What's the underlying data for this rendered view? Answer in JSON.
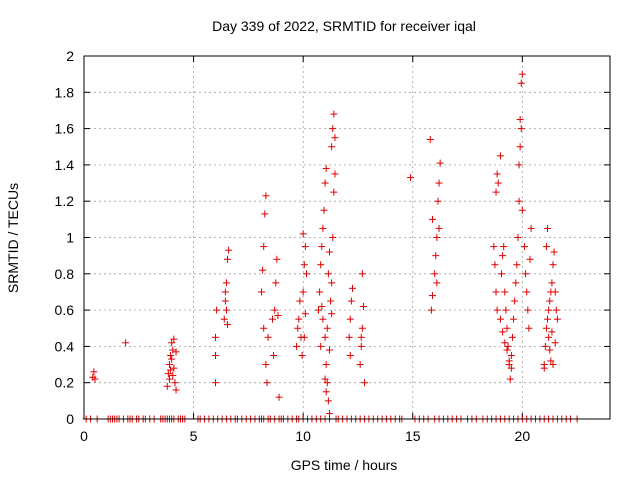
{
  "chart_data": {
    "type": "scatter",
    "title": "Day 339 of 2022, SRMTID for receiver iqal",
    "xlabel": "GPS time / hours",
    "ylabel": "SRMTID / TECUs",
    "xlim": [
      0,
      24
    ],
    "ylim": [
      0,
      2
    ],
    "xticks": [
      0,
      5,
      10,
      15,
      20
    ],
    "xtick_labels": [
      "0",
      "5",
      "10",
      "15",
      "20"
    ],
    "yticks": [
      0,
      0.2,
      0.4,
      0.6,
      0.8,
      1,
      1.2,
      1.4,
      1.6,
      1.8,
      2
    ],
    "ytick_labels": [
      "0",
      "0.2",
      "0.4",
      "0.6",
      "0.8",
      "1",
      "1.2",
      "1.4",
      "1.6",
      "1.8",
      "2"
    ],
    "grid": true,
    "marker": "+",
    "color": "#e00000",
    "series": [
      {
        "name": "SRMTID",
        "points": [
          [
            0.4,
            0.23
          ],
          [
            0.45,
            0.26
          ],
          [
            0.5,
            0.22
          ],
          [
            1.9,
            0.42
          ],
          [
            3.8,
            0.18
          ],
          [
            3.85,
            0.25
          ],
          [
            3.9,
            0.3
          ],
          [
            3.95,
            0.35
          ],
          [
            4.0,
            0.42
          ],
          [
            4.05,
            0.38
          ],
          [
            4.1,
            0.28
          ],
          [
            4.15,
            0.2
          ],
          [
            4.2,
            0.16
          ],
          [
            3.9,
            0.22
          ],
          [
            4.0,
            0.33
          ],
          [
            4.1,
            0.44
          ],
          [
            4.2,
            0.37
          ],
          [
            3.95,
            0.27
          ],
          [
            4.05,
            0.24
          ],
          [
            6.0,
            0.2
          ],
          [
            6.0,
            0.45
          ],
          [
            6.05,
            0.6
          ],
          [
            6.0,
            0.35
          ],
          [
            6.4,
            0.55
          ],
          [
            6.45,
            0.65
          ],
          [
            6.5,
            0.75
          ],
          [
            6.55,
            0.88
          ],
          [
            6.6,
            0.93
          ],
          [
            6.5,
            0.6
          ],
          [
            6.45,
            0.7
          ],
          [
            6.55,
            0.52
          ],
          [
            8.1,
            0.7
          ],
          [
            8.15,
            0.82
          ],
          [
            8.2,
            0.95
          ],
          [
            8.25,
            1.13
          ],
          [
            8.3,
            1.23
          ],
          [
            8.2,
            0.5
          ],
          [
            8.3,
            0.3
          ],
          [
            8.35,
            0.2
          ],
          [
            8.4,
            0.45
          ],
          [
            8.6,
            0.55
          ],
          [
            8.7,
            0.6
          ],
          [
            8.75,
            0.75
          ],
          [
            8.8,
            0.88
          ],
          [
            8.85,
            0.57
          ],
          [
            8.9,
            0.12
          ],
          [
            8.65,
            0.35
          ],
          [
            9.7,
            0.4
          ],
          [
            9.75,
            0.5
          ],
          [
            9.8,
            0.55
          ],
          [
            9.85,
            0.65
          ],
          [
            9.9,
            0.45
          ],
          [
            9.95,
            0.35
          ],
          [
            10.0,
            0.7
          ],
          [
            10.05,
            0.85
          ],
          [
            10.1,
            0.95
          ],
          [
            10.0,
            1.02
          ],
          [
            10.15,
            0.8
          ],
          [
            10.1,
            0.58
          ],
          [
            10.05,
            0.45
          ],
          [
            10.7,
            0.6
          ],
          [
            10.75,
            0.7
          ],
          [
            10.8,
            0.85
          ],
          [
            10.85,
            0.95
          ],
          [
            10.9,
            1.05
          ],
          [
            10.95,
            1.15
          ],
          [
            11.0,
            1.3
          ],
          [
            11.05,
            1.38
          ],
          [
            10.9,
            0.55
          ],
          [
            11.0,
            0.45
          ],
          [
            11.05,
            0.3
          ],
          [
            11.1,
            0.2
          ],
          [
            11.15,
            0.1
          ],
          [
            11.2,
            0.03
          ],
          [
            11.0,
            0.22
          ],
          [
            11.05,
            0.15
          ],
          [
            11.1,
            0.5
          ],
          [
            11.25,
            0.65
          ],
          [
            11.3,
            0.75
          ],
          [
            11.35,
            1.0
          ],
          [
            11.4,
            1.25
          ],
          [
            11.3,
            1.5
          ],
          [
            11.35,
            1.6
          ],
          [
            11.4,
            1.68
          ],
          [
            11.45,
            1.55
          ],
          [
            10.8,
            0.4
          ],
          [
            10.85,
            0.62
          ],
          [
            11.15,
            0.8
          ],
          [
            11.2,
            0.92
          ],
          [
            11.45,
            1.35
          ],
          [
            11.3,
            0.58
          ],
          [
            11.2,
            0.38
          ],
          [
            12.1,
            0.45
          ],
          [
            12.15,
            0.55
          ],
          [
            12.2,
            0.65
          ],
          [
            12.25,
            0.72
          ],
          [
            12.15,
            0.35
          ],
          [
            12.6,
            0.3
          ],
          [
            12.65,
            0.4
          ],
          [
            12.7,
            0.5
          ],
          [
            12.75,
            0.62
          ],
          [
            12.7,
            0.8
          ],
          [
            12.8,
            0.2
          ],
          [
            12.65,
            0.45
          ],
          [
            14.9,
            1.33
          ],
          [
            15.8,
            1.54
          ],
          [
            15.9,
            1.1
          ],
          [
            15.85,
            0.6
          ],
          [
            15.9,
            0.68
          ],
          [
            16.0,
            0.8
          ],
          [
            16.05,
            0.9
          ],
          [
            16.1,
            1.0
          ],
          [
            16.15,
            1.2
          ],
          [
            16.2,
            1.3
          ],
          [
            16.25,
            1.41
          ],
          [
            16.2,
            1.05
          ],
          [
            16.1,
            0.75
          ],
          [
            18.8,
            1.25
          ],
          [
            18.85,
            1.35
          ],
          [
            18.9,
            1.3
          ],
          [
            19.0,
            1.45
          ],
          [
            19.05,
            0.8
          ],
          [
            19.1,
            0.9
          ],
          [
            19.15,
            0.95
          ],
          [
            19.2,
            0.7
          ],
          [
            19.25,
            0.6
          ],
          [
            19.3,
            0.5
          ],
          [
            19.35,
            0.4
          ],
          [
            19.4,
            0.3
          ],
          [
            19.45,
            0.22
          ],
          [
            19.5,
            0.35
          ],
          [
            19.55,
            0.45
          ],
          [
            19.6,
            0.55
          ],
          [
            19.65,
            0.65
          ],
          [
            19.7,
            0.75
          ],
          [
            19.75,
            0.85
          ],
          [
            19.8,
            1.0
          ],
          [
            19.85,
            1.2
          ],
          [
            19.9,
            1.65
          ],
          [
            19.95,
            1.85
          ],
          [
            20.0,
            1.9
          ],
          [
            19.95,
            1.6
          ],
          [
            19.9,
            1.5
          ],
          [
            19.85,
            1.4
          ],
          [
            20.0,
            1.15
          ],
          [
            20.1,
            0.95
          ],
          [
            20.15,
            0.8
          ],
          [
            20.2,
            0.7
          ],
          [
            20.25,
            0.6
          ],
          [
            20.3,
            0.5
          ],
          [
            20.35,
            0.88
          ],
          [
            20.4,
            1.05
          ],
          [
            18.7,
            0.95
          ],
          [
            18.75,
            0.85
          ],
          [
            18.8,
            0.7
          ],
          [
            18.85,
            0.6
          ],
          [
            19.0,
            0.55
          ],
          [
            19.1,
            0.48
          ],
          [
            19.2,
            0.42
          ],
          [
            19.3,
            0.38
          ],
          [
            19.4,
            0.32
          ],
          [
            19.5,
            0.28
          ],
          [
            21.0,
            0.3
          ],
          [
            21.05,
            0.4
          ],
          [
            21.1,
            0.5
          ],
          [
            21.15,
            0.55
          ],
          [
            21.2,
            0.6
          ],
          [
            21.25,
            0.65
          ],
          [
            21.3,
            0.7
          ],
          [
            21.35,
            0.75
          ],
          [
            21.4,
            0.85
          ],
          [
            21.45,
            0.92
          ],
          [
            21.5,
            0.7
          ],
          [
            21.55,
            0.6
          ],
          [
            21.2,
            0.45
          ],
          [
            21.25,
            0.38
          ],
          [
            21.3,
            0.32
          ],
          [
            21.35,
            0.48
          ],
          [
            21.1,
            0.95
          ],
          [
            21.15,
            1.05
          ],
          [
            21.4,
            0.3
          ],
          [
            21.5,
            0.42
          ],
          [
            21.6,
            0.55
          ],
          [
            21.0,
            0.28
          ]
        ],
        "zero_points_x": [
          0.1,
          0.3,
          0.6,
          1.1,
          1.2,
          1.3,
          1.4,
          1.5,
          1.6,
          1.8,
          2.0,
          2.1,
          2.2,
          2.4,
          2.5,
          2.7,
          2.8,
          3.0,
          3.2,
          3.5,
          3.6,
          3.7,
          3.8,
          3.9,
          4.0,
          4.1,
          4.3,
          4.4,
          4.5,
          4.6,
          5.2,
          5.3,
          5.5,
          5.7,
          5.9,
          6.1,
          6.3,
          6.5,
          6.7,
          6.9,
          7.0,
          7.2,
          7.4,
          7.6,
          7.8,
          8.0,
          8.1,
          8.2,
          8.4,
          8.5,
          8.7,
          8.9,
          9.0,
          9.1,
          9.3,
          9.5,
          9.7,
          9.8,
          10.0,
          10.2,
          10.4,
          10.6,
          10.8,
          11.0,
          11.2,
          11.5,
          11.6,
          11.8,
          12.0,
          12.2,
          12.4,
          12.6,
          12.8,
          13.0,
          13.2,
          13.4,
          13.6,
          13.8,
          14.0,
          14.2,
          14.4,
          14.5,
          15.1,
          15.3,
          15.5,
          15.7,
          16.0,
          16.2,
          16.4,
          16.6,
          16.8,
          17.0,
          17.2,
          17.5,
          17.7,
          17.9,
          18.2,
          18.4,
          18.6,
          18.8,
          19.0,
          19.2,
          19.4,
          19.6,
          19.8,
          20.0,
          20.2,
          20.4,
          20.6,
          20.8,
          21.0,
          21.2,
          21.4,
          21.6,
          21.8,
          22.0,
          22.2,
          22.5
        ]
      }
    ]
  }
}
